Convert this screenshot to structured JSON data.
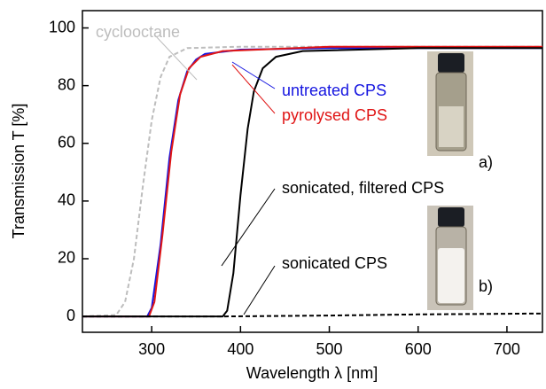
{
  "chart_data": {
    "type": "line",
    "xlabel": "Wavelength λ [nm]",
    "ylabel": "Transmission T [%]",
    "xlim": [
      222,
      740
    ],
    "ylim": [
      -5.5,
      106
    ],
    "xticks": [
      300,
      400,
      500,
      600,
      700
    ],
    "yticks": [
      0,
      20,
      40,
      60,
      80,
      100
    ],
    "series": [
      {
        "name": "cyclooctane",
        "color": "#bdbdbd",
        "linestyle": "dashed",
        "x": [
          222,
          260,
          270,
          280,
          290,
          300,
          310,
          320,
          340,
          400,
          740
        ],
        "values": [
          0,
          0.5,
          5,
          20,
          45,
          68,
          83,
          90,
          93,
          93.5,
          93.5
        ]
      },
      {
        "name": "untreated CPS",
        "color": "#1515e0",
        "linestyle": "solid",
        "x": [
          222,
          295,
          300,
          310,
          320,
          330,
          340,
          350,
          360,
          400,
          500,
          740
        ],
        "values": [
          0,
          0,
          3,
          25,
          55,
          75,
          85,
          89,
          91,
          92.5,
          93,
          93
        ]
      },
      {
        "name": "pyrolysed CPS",
        "color": "#e01515",
        "linestyle": "solid",
        "x": [
          222,
          297,
          303,
          312,
          322,
          332,
          342,
          355,
          380,
          500,
          740
        ],
        "values": [
          0,
          0,
          5,
          28,
          57,
          77,
          86,
          90,
          92,
          93.5,
          93.5
        ]
      },
      {
        "name": "sonicated, filtered CPS",
        "color": "#000000",
        "linestyle": "solid",
        "x": [
          222,
          380,
          385,
          392,
          400,
          408,
          415,
          425,
          440,
          470,
          600,
          740
        ],
        "values": [
          0,
          0,
          2,
          15,
          42,
          65,
          78,
          86,
          90,
          92,
          93,
          93
        ]
      },
      {
        "name": "sonicated CPS",
        "color": "#000000",
        "linestyle": "dashed",
        "x": [
          222,
          380,
          500,
          600,
          740
        ],
        "values": [
          0,
          0,
          0.3,
          0.7,
          1
        ]
      }
    ],
    "photo_labels": [
      "a)",
      "b)"
    ]
  }
}
